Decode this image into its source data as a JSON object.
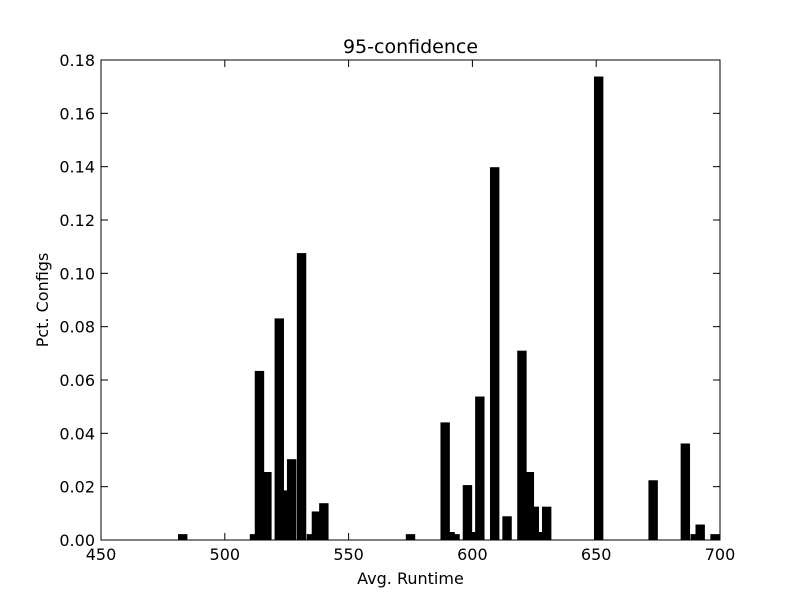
{
  "chart_data": {
    "type": "bar",
    "title": "95-confidence",
    "xlabel": "Avg. Runtime",
    "ylabel": "Pct. Configs",
    "xlim": [
      450,
      700
    ],
    "ylim": [
      0.0,
      0.18
    ],
    "grid": false,
    "bar_width": 3.8,
    "bar_color": "#000000",
    "xticks": [
      450,
      500,
      550,
      600,
      650,
      700
    ],
    "xtick_labels": [
      "450",
      "500",
      "550",
      "600",
      "650",
      "700"
    ],
    "yticks": [
      0.0,
      0.02,
      0.04,
      0.06,
      0.08,
      0.1,
      0.12,
      0.14,
      0.16,
      0.18
    ],
    "ytick_labels": [
      "0.00",
      "0.02",
      "0.04",
      "0.06",
      "0.08",
      "0.10",
      "0.12",
      "0.14",
      "0.16",
      "0.18"
    ],
    "x": [
      483,
      512,
      514,
      517,
      522,
      525,
      527,
      531,
      535,
      537,
      540,
      575,
      589,
      591,
      593,
      598,
      600,
      603,
      609,
      614,
      620,
      623,
      625,
      627,
      630,
      651,
      673,
      686,
      690,
      692,
      698
    ],
    "values": [
      0.0022,
      0.0022,
      0.0634,
      0.0255,
      0.0831,
      0.0186,
      0.0303,
      0.1076,
      0.0022,
      0.0107,
      0.0138,
      0.0022,
      0.0441,
      0.003,
      0.0022,
      0.0206,
      0.003,
      0.0538,
      0.1398,
      0.0089,
      0.071,
      0.0255,
      0.0125,
      0.003,
      0.0125,
      0.1738,
      0.0224,
      0.0362,
      0.0022,
      0.0058,
      0.0022
    ]
  }
}
